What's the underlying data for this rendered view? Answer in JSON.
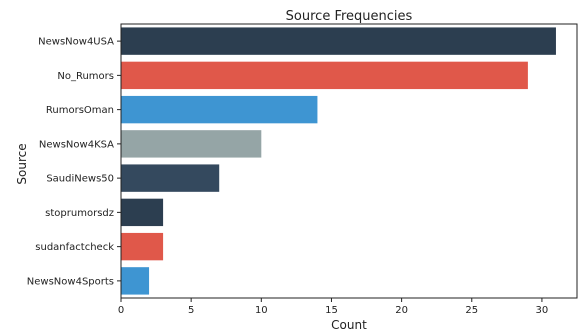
{
  "chart_data": {
    "type": "bar",
    "orientation": "horizontal",
    "title": "Source Frequencies",
    "xlabel": "Count",
    "ylabel": "Source",
    "categories": [
      "NewsNow4USA",
      "No_Rumors",
      "RumorsOman",
      "NewsNow4KSA",
      "SaudiNews50",
      "stoprumorsdz",
      "sudanfactcheck",
      "NewsNow4Sports"
    ],
    "values": [
      31,
      29,
      14,
      10,
      7,
      3,
      3,
      2
    ],
    "bar_colors": [
      "#2c3e50",
      "#e0584a",
      "#3e95d2",
      "#95a5a6",
      "#34495e",
      "#2c3e50",
      "#e0584a",
      "#3e95d2"
    ],
    "xlim": [
      0,
      32.5
    ],
    "xticks": [
      0,
      5,
      10,
      15,
      20,
      25,
      30
    ],
    "grid": false,
    "legend": "none"
  }
}
